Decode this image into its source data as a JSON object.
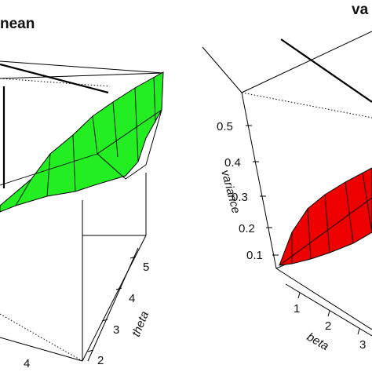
{
  "chart_data": [
    {
      "type": "surface",
      "title_fragment": "nean",
      "zlabel": "",
      "axes": [
        {
          "name": "theta",
          "ticks": [
            "2",
            "3",
            "4",
            "5"
          ]
        },
        {
          "name": "",
          "ticks": [
            "4"
          ]
        }
      ],
      "surface_color": "#22ee22",
      "edge_color": "#000000"
    },
    {
      "type": "surface",
      "title_fragment": "va",
      "zlabel": "variance",
      "axes": [
        {
          "name": "variance",
          "ticks": [
            "0.1",
            "0.2",
            "0.3",
            "0.4",
            "0.5"
          ]
        },
        {
          "name": "beta",
          "ticks": [
            "1",
            "2",
            "3"
          ]
        }
      ],
      "surface_color": "#ee0000",
      "edge_color": "#000000"
    }
  ]
}
